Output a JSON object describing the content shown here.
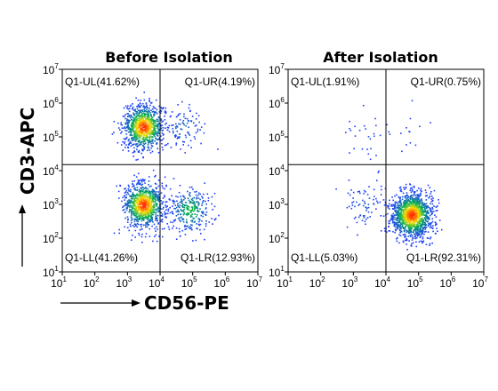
{
  "chart_data": [
    {
      "type": "scatter",
      "title": "Before Isolation",
      "xlabel": "CD56-PE",
      "ylabel": "CD3-APC",
      "xscale": "log",
      "yscale": "log",
      "xlim": [
        10,
        10000000
      ],
      "ylim": [
        10,
        10000000
      ],
      "x_ticks": [
        "10",
        "10",
        "10",
        "10",
        "10",
        "10",
        "10"
      ],
      "x_tick_exponents": [
        "1",
        "2",
        "3",
        "4",
        "5",
        "6",
        "7"
      ],
      "y_ticks": [
        "10",
        "10",
        "10",
        "10",
        "10",
        "10",
        "10"
      ],
      "y_tick_exponents": [
        "1",
        "2",
        "3",
        "4",
        "5",
        "6",
        "7"
      ],
      "gate": {
        "x": 10000,
        "y": 15000
      },
      "quadrants": [
        {
          "label": "Q1-UL(41.62%)",
          "position": "top-left"
        },
        {
          "label": "Q1-UR(4.19%)",
          "position": "top-right"
        },
        {
          "label": "Q1-LL(41.26%)",
          "position": "bottom-left"
        },
        {
          "label": "Q1-LR(12.93%)",
          "position": "bottom-right"
        }
      ],
      "clusters": [
        {
          "x": 3000,
          "y": 200000,
          "count": 900
        },
        {
          "x": 3000,
          "y": 1000,
          "count": 900
        },
        {
          "x": 80000,
          "y": 700,
          "count": 280
        },
        {
          "x": 50000,
          "y": 200000,
          "count": 90
        }
      ]
    },
    {
      "type": "scatter",
      "title": "After Isolation",
      "xlabel": "CD56-PE",
      "ylabel": "CD3-APC",
      "xscale": "log",
      "yscale": "log",
      "xlim": [
        10,
        10000000
      ],
      "ylim": [
        10,
        10000000
      ],
      "x_ticks": [
        "10",
        "10",
        "10",
        "10",
        "10",
        "10",
        "10"
      ],
      "x_tick_exponents": [
        "1",
        "2",
        "3",
        "4",
        "5",
        "6",
        "7"
      ],
      "y_ticks": [
        "10",
        "10",
        "10",
        "10",
        "10",
        "10",
        "10"
      ],
      "y_tick_exponents": [
        "1",
        "2",
        "3",
        "4",
        "5",
        "6",
        "7"
      ],
      "gate": {
        "x": 10000,
        "y": 15000
      },
      "quadrants": [
        {
          "label": "Q1-UL(1.91%)",
          "position": "top-left"
        },
        {
          "label": "Q1-UR(0.75%)",
          "position": "top-right"
        },
        {
          "label": "Q1-LL(5.03%)",
          "position": "bottom-left"
        },
        {
          "label": "Q1-LR(92.31%)",
          "position": "bottom-right"
        }
      ],
      "clusters": [
        {
          "x": 60000,
          "y": 500,
          "count": 1300
        },
        {
          "x": 2000,
          "y": 1000,
          "count": 70
        },
        {
          "x": 3000,
          "y": 100000,
          "count": 30
        },
        {
          "x": 50000,
          "y": 100000,
          "count": 12
        }
      ]
    }
  ],
  "colors": {
    "density_low": "#1f3cff",
    "density_mid": "#00b050",
    "density_high": "#ffe000",
    "density_peak": "#ff2a00",
    "axis": "#000000"
  }
}
